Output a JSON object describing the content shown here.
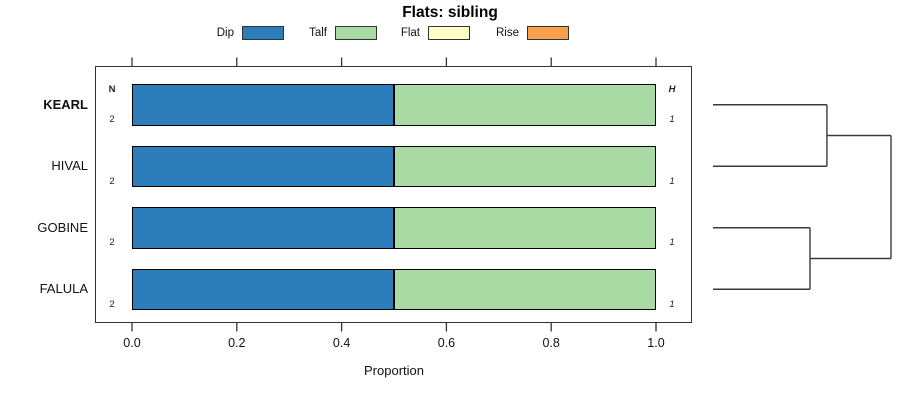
{
  "title": "Flats: sibling",
  "chart_data": {
    "type": "bar",
    "subtype": "stacked-horizontal-proportion",
    "title": "Flats: sibling",
    "categories": [
      "KEARL",
      "HIVAL",
      "GOBINE",
      "FALULA"
    ],
    "bold_categories": [
      "KEARL"
    ],
    "series": [
      {
        "name": "Dip",
        "color": "#2d7dbb",
        "values": [
          0.5,
          0.5,
          0.5,
          0.5
        ]
      },
      {
        "name": "Talf",
        "color": "#a9daa3",
        "values": [
          0.5,
          0.5,
          0.5,
          0.5
        ]
      },
      {
        "name": "Flat",
        "color": "#ffffc9",
        "values": [
          0,
          0,
          0,
          0
        ]
      },
      {
        "name": "Rise",
        "color": "#f9a04f",
        "values": [
          0,
          0,
          0,
          0
        ]
      }
    ],
    "n_column": {
      "header": "N",
      "values": [
        "2",
        "2",
        "2",
        "2"
      ]
    },
    "h_column": {
      "header": "H",
      "values": [
        "1",
        "1",
        "1",
        "1"
      ]
    },
    "xlabel": "Proportion",
    "xlim": [
      0,
      1
    ],
    "xticks": [
      0.0,
      0.2,
      0.4,
      0.6,
      0.8,
      1.0
    ],
    "xtick_labels": [
      "0.0",
      "0.2",
      "0.4",
      "0.6",
      "0.8",
      "1.0"
    ],
    "grid": false,
    "legend_position": "top",
    "bar_outline_color": "#000000",
    "dendrogram": {
      "side": "right",
      "leaves": [
        "KEARL",
        "HIVAL",
        "GOBINE",
        "FALULA"
      ],
      "merges": [
        {
          "id": "m0",
          "children": [
            "KEARL",
            "HIVAL"
          ],
          "height_frac": 0.64
        },
        {
          "id": "m1",
          "children": [
            "GOBINE",
            "FALULA"
          ],
          "height_frac": 0.545
        },
        {
          "id": "m2",
          "children": [
            "m0",
            "m1"
          ],
          "height_frac": 1.0
        }
      ]
    }
  }
}
